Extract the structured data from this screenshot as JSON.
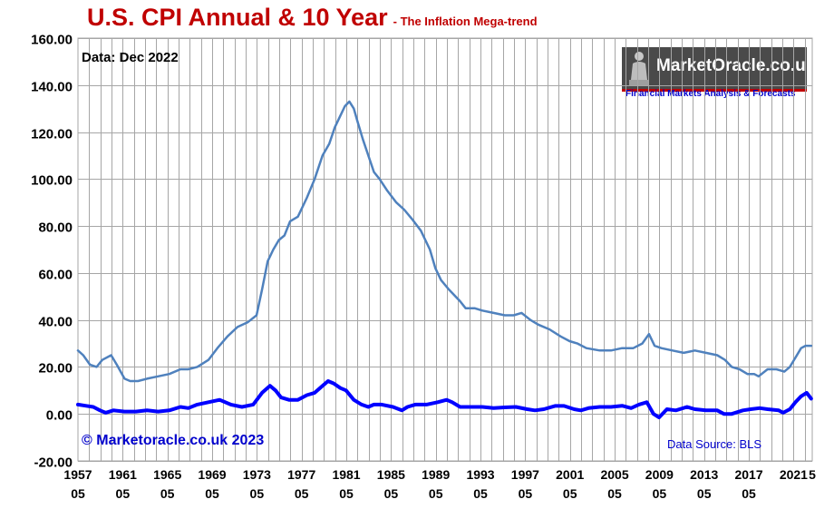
{
  "header": {
    "title": "U.S. CPI Annual & 10 Year",
    "subtitle": "- The Inflation Mega-trend"
  },
  "annotations": {
    "data_date": "Data: Dec 2022",
    "copyright": "© Marketoracle.co.uk 2023",
    "data_source": "Data Source: BLS"
  },
  "logo": {
    "name": "MarketOracle.co.uk",
    "tagline": "Financial Markets Analysis & Forecasts"
  },
  "colors": {
    "ten_year": "#4f81bd",
    "annual": "#0000ff",
    "title": "#c00000",
    "grid": "#a6a6a6"
  },
  "chart_data": {
    "type": "line",
    "title": "U.S. CPI Annual & 10 Year",
    "subtitle": "- The Inflation Mega-trend",
    "xlabel": "",
    "ylabel": "",
    "ylim": [
      -20,
      160
    ],
    "y_ticks": [
      "160.00",
      "140.00",
      "120.00",
      "100.00",
      "80.00",
      "60.00",
      "40.00",
      "20.00",
      "0.00",
      "-20.00"
    ],
    "xlim": [
      1957.33,
      2023.0
    ],
    "x_ticks": [
      {
        "year": 1957.33,
        "top": "1957",
        "bottom": "05"
      },
      {
        "year": 1961.33,
        "top": "1961",
        "bottom": "05"
      },
      {
        "year": 1965.33,
        "top": "1965",
        "bottom": "05"
      },
      {
        "year": 1969.33,
        "top": "1969",
        "bottom": "05"
      },
      {
        "year": 1973.33,
        "top": "1973",
        "bottom": "05"
      },
      {
        "year": 1977.33,
        "top": "1977",
        "bottom": "05"
      },
      {
        "year": 1981.33,
        "top": "1981",
        "bottom": "05"
      },
      {
        "year": 1985.33,
        "top": "1985",
        "bottom": "05"
      },
      {
        "year": 1989.33,
        "top": "1989",
        "bottom": "05"
      },
      {
        "year": 1993.33,
        "top": "1993",
        "bottom": "05"
      },
      {
        "year": 1997.33,
        "top": "1997",
        "bottom": "05"
      },
      {
        "year": 2001.33,
        "top": "2001",
        "bottom": "05"
      },
      {
        "year": 2005.33,
        "top": "2005",
        "bottom": "05"
      },
      {
        "year": 2009.33,
        "top": "2009",
        "bottom": "05"
      },
      {
        "year": 2013.33,
        "top": "2013",
        "bottom": "05"
      },
      {
        "year": 2017.33,
        "top": "2017",
        "bottom": "05"
      },
      {
        "year": 2021.33,
        "top": "2021",
        "bottom": ""
      },
      {
        "year": 2023.0,
        "top": "5",
        "bottom": ""
      }
    ],
    "grid": true,
    "legend": "none",
    "series": [
      {
        "x": [
          1957.33,
          1957.8,
          1958.4,
          1959.0,
          1959.5,
          1960.3,
          1960.8,
          1961.5,
          1962.0,
          1962.7,
          1963.5,
          1964.5,
          1965.5,
          1966.5,
          1967.2,
          1968.0,
          1969.0,
          1969.8,
          1970.7,
          1971.6,
          1972.5,
          1973.3,
          1973.8,
          1974.3,
          1974.8,
          1975.3,
          1975.8,
          1976.3,
          1977.0,
          1977.8,
          1978.5,
          1979.2,
          1979.8,
          1980.3,
          1980.8,
          1981.2,
          1981.6,
          1982.0,
          1982.3,
          1982.8,
          1983.3,
          1983.8,
          1984.3,
          1985.0,
          1985.8,
          1986.5,
          1987.2,
          1988.0,
          1988.8,
          1989.3,
          1989.8,
          1990.5,
          1991.5,
          1992.0,
          1992.8,
          1993.5,
          1994.5,
          1995.5,
          1996.3,
          1997.0,
          1997.8,
          1998.5,
          1999.5,
          2000.5,
          2001.3,
          2002.0,
          2002.8,
          2004.0,
          2005.0,
          2006.0,
          2007.0,
          2007.8,
          2008.4,
          2008.9,
          2009.5,
          2010.5,
          2011.5,
          2012.5,
          2013.5,
          2014.5,
          2015.2,
          2015.8,
          2016.5,
          2017.2,
          2017.8,
          2018.2,
          2019.0,
          2019.8,
          2020.5,
          2021.0,
          2021.5,
          2022.0,
          2022.4,
          2022.9
        ],
        "y": [
          27,
          25,
          21,
          20,
          23,
          25,
          21,
          15,
          14,
          14,
          15,
          16,
          17,
          19,
          19,
          20,
          23,
          28,
          33,
          37,
          39,
          42,
          53,
          65,
          70,
          74,
          76,
          82,
          84,
          92,
          100,
          110,
          115,
          122,
          127,
          131,
          133,
          130,
          125,
          117,
          110,
          103,
          100,
          95,
          90,
          87,
          83,
          78,
          70,
          62,
          57,
          53,
          48,
          45,
          45,
          44,
          43,
          42,
          42,
          43,
          40,
          38,
          36,
          33,
          31,
          30,
          28,
          27,
          27,
          28,
          28,
          30,
          34,
          29,
          28,
          27,
          26,
          27,
          26,
          25,
          23,
          20,
          19,
          17,
          17,
          16,
          19,
          19,
          18,
          20,
          24,
          28,
          29,
          29
        ],
        "name": ""
      },
      {
        "x": [
          1957.33,
          1958.0,
          1958.7,
          1959.3,
          1959.8,
          1960.5,
          1961.5,
          1962.5,
          1963.5,
          1964.5,
          1965.5,
          1966.5,
          1967.2,
          1968.0,
          1969.0,
          1970.0,
          1971.0,
          1972.0,
          1973.0,
          1973.8,
          1974.5,
          1975.0,
          1975.5,
          1976.2,
          1977.0,
          1977.8,
          1978.5,
          1979.2,
          1979.7,
          1980.2,
          1980.8,
          1981.3,
          1982.0,
          1982.7,
          1983.3,
          1983.8,
          1984.5,
          1985.5,
          1986.3,
          1986.8,
          1987.5,
          1988.5,
          1989.5,
          1990.3,
          1990.8,
          1991.5,
          1992.5,
          1993.5,
          1994.5,
          1995.5,
          1996.5,
          1997.5,
          1998.2,
          1999.0,
          2000.0,
          2000.8,
          2001.7,
          2002.3,
          2003.0,
          2004.0,
          2005.0,
          2006.0,
          2006.8,
          2007.5,
          2008.2,
          2008.8,
          2009.3,
          2009.6,
          2010.0,
          2010.8,
          2011.8,
          2012.5,
          2013.5,
          2014.5,
          2015.1,
          2015.8,
          2016.8,
          2017.5,
          2018.3,
          2019.0,
          2020.0,
          2020.4,
          2021.0,
          2021.5,
          2022.0,
          2022.5,
          2022.9
        ],
        "y": [
          4,
          3.5,
          3,
          1.5,
          0.5,
          1.5,
          1,
          1,
          1.5,
          1,
          1.5,
          3,
          2.5,
          4,
          5,
          6,
          4,
          3,
          4,
          9,
          12,
          10,
          7,
          6,
          6,
          8,
          9,
          12,
          14,
          13,
          11,
          10,
          6,
          4,
          3,
          4,
          4,
          3,
          1.5,
          3,
          4,
          4,
          5,
          6,
          5,
          3,
          3,
          3,
          2.5,
          2.8,
          3,
          2,
          1.5,
          2,
          3.4,
          3.4,
          2,
          1.5,
          2.5,
          3,
          3,
          3.5,
          2.5,
          4,
          5,
          0,
          -1.5,
          0,
          2,
          1.5,
          3,
          2,
          1.5,
          1.5,
          0,
          0,
          1.5,
          2,
          2.5,
          2,
          1.5,
          0.5,
          2,
          5,
          7.5,
          9,
          6.5
        ],
        "name": ""
      }
    ]
  }
}
